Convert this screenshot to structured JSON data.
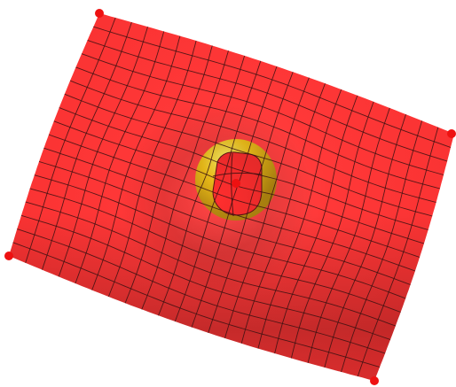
{
  "scene": {
    "surface_color": "#ff3333",
    "surface_shadow_color": "#a81e1e",
    "grid_line_color": "#3a1212",
    "sphere_color": "#f2c21a",
    "sphere_highlight_color": "#fff36a",
    "control_point_color": "#ee1111",
    "grid_divisions": {
      "u": 22,
      "v": 18
    },
    "control_points": 5
  }
}
